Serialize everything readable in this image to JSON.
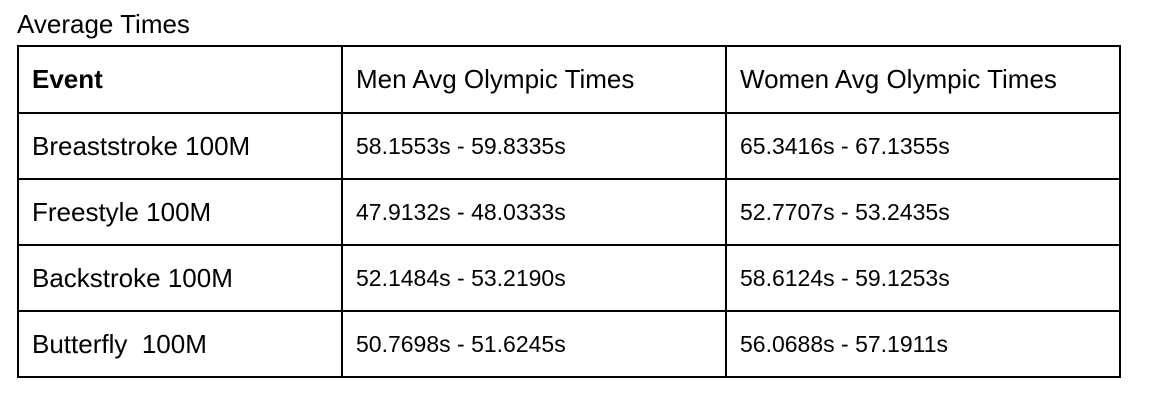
{
  "title": "Average Times",
  "table": {
    "headers": [
      "Event",
      "Men Avg Olympic Times",
      "Women Avg Olympic Times"
    ],
    "rows": [
      {
        "event": "Breaststroke 100M",
        "men": "58.1553s - 59.8335s",
        "women": "65.3416s - 67.1355s"
      },
      {
        "event": "Freestyle 100M",
        "men": "47.9132s - 48.0333s",
        "women": "52.7707s - 53.2435s"
      },
      {
        "event": "Backstroke 100M",
        "men": "52.1484s - 53.2190s",
        "women": "58.6124s - 59.1253s"
      },
      {
        "event": "Butterfly  100M",
        "men": "50.7698s - 51.6245s",
        "women": "56.0688s - 57.1911s"
      }
    ]
  }
}
